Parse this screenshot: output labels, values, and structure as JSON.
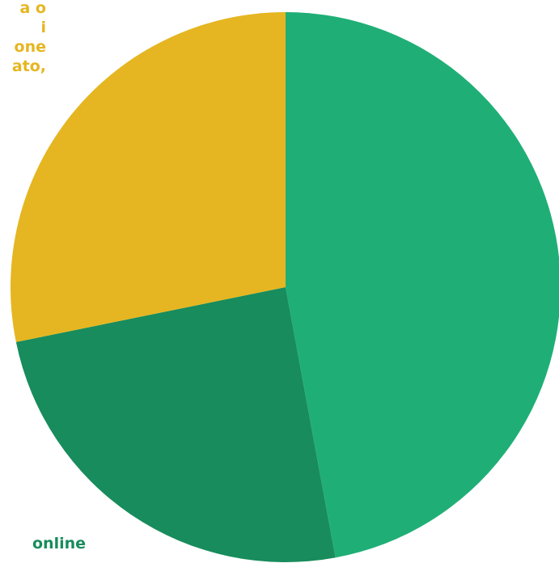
{
  "chart_data": {
    "type": "pie",
    "slices": [
      {
        "label": "",
        "value": 47.1,
        "color": "#1faf76"
      },
      {
        "label": "online",
        "value": 24.7,
        "color": "#188c5c"
      },
      {
        "label": "",
        "value": 28.2,
        "color": "#e5b621"
      }
    ],
    "start_angle_deg": 0,
    "direction": "clockwise",
    "visible_label_fragments": {
      "gold": [
        "a o",
        "i",
        "one",
        "ato,"
      ],
      "green": "online"
    },
    "colors": {
      "gold_text": "#e5b621",
      "green_text": "#188c5c"
    }
  }
}
